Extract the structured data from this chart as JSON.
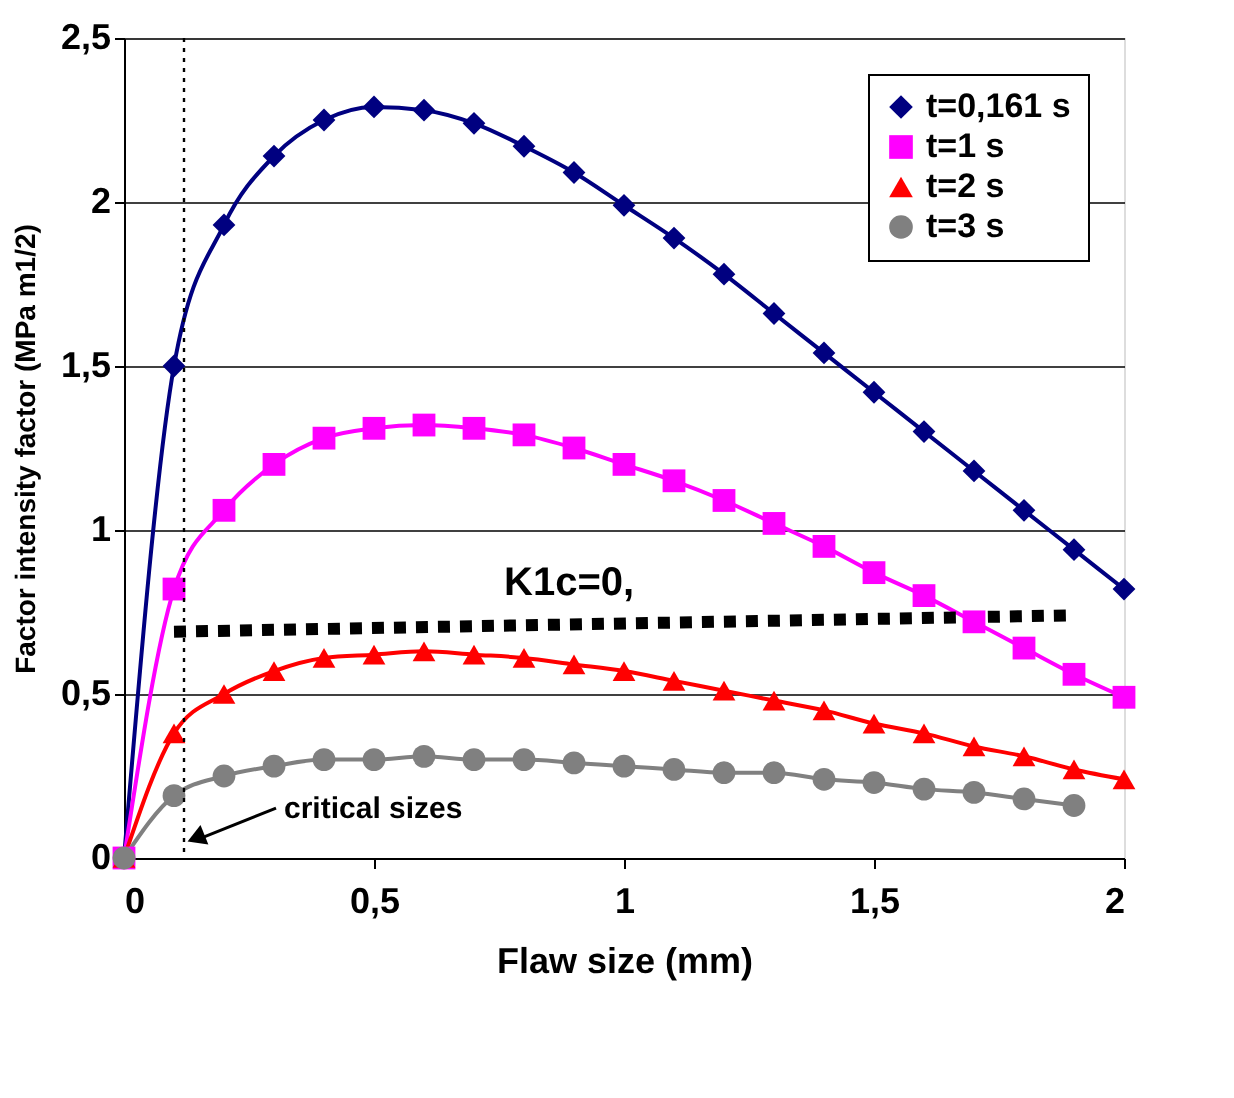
{
  "chart_data": {
    "type": "line",
    "xlabel": "Flaw size (mm)",
    "ylabel": "Factor intensity factor (MPa m1/2)",
    "x": [
      0,
      0.1,
      0.2,
      0.3,
      0.4,
      0.5,
      0.6,
      0.7,
      0.8,
      0.9,
      1.0,
      1.1,
      1.2,
      1.3,
      1.4,
      1.5,
      1.6,
      1.7,
      1.8,
      1.9,
      2.0
    ],
    "series": [
      {
        "name": "t=0,161 s",
        "color": "#000080",
        "marker": "diamond",
        "values": [
          0,
          1.5,
          1.93,
          2.14,
          2.25,
          2.29,
          2.28,
          2.24,
          2.17,
          2.09,
          1.99,
          1.89,
          1.78,
          1.66,
          1.54,
          1.42,
          1.3,
          1.18,
          1.06,
          0.94,
          0.82
        ]
      },
      {
        "name": "t=1 s",
        "color": "#ff00ff",
        "marker": "square",
        "values": [
          0,
          0.82,
          1.06,
          1.2,
          1.28,
          1.31,
          1.32,
          1.31,
          1.29,
          1.25,
          1.2,
          1.15,
          1.09,
          1.02,
          0.95,
          0.87,
          0.8,
          0.72,
          0.64,
          0.56,
          0.49
        ]
      },
      {
        "name": "t=2 s",
        "color": "#ff0000",
        "marker": "triangle",
        "values": [
          0,
          0.38,
          0.5,
          0.57,
          0.61,
          0.62,
          0.63,
          0.62,
          0.61,
          0.59,
          0.57,
          0.54,
          0.51,
          0.48,
          0.45,
          0.41,
          0.38,
          0.34,
          0.31,
          0.27,
          0.24
        ]
      },
      {
        "name": "t=3 s",
        "color": "#808080",
        "marker": "circle",
        "values": [
          0,
          0.19,
          0.25,
          0.28,
          0.3,
          0.3,
          0.31,
          0.3,
          0.3,
          0.29,
          0.28,
          0.27,
          0.26,
          0.26,
          0.24,
          0.23,
          0.21,
          0.2,
          0.18,
          0.16,
          null
        ]
      },
      {
        "color": "#000000",
        "line_style": "dotted",
        "marker": "none",
        "x": [
          0.1,
          1.9
        ],
        "values": [
          0.69,
          0.74
        ]
      }
    ],
    "xlim": [
      0,
      2
    ],
    "xticks": [
      0,
      {
        "value": 0.5,
        "label": "0,5"
      },
      1,
      {
        "value": 1.5,
        "label": "1,5"
      },
      2
    ],
    "ylim": [
      0,
      2.5
    ],
    "yticks": [
      0,
      {
        "value": 0.5,
        "label": "0,5"
      },
      1,
      {
        "value": 1.5,
        "label": "1,5"
      },
      2,
      {
        "value": 2.5,
        "label": "2,5"
      }
    ],
    "grid": "y",
    "legend": "top right",
    "ref_lines": [
      {
        "axis": "x",
        "value": 0.12,
        "line_style": "dotted",
        "color": "#000000"
      }
    ],
    "annotations": [
      "K1c=0,",
      {
        "text": "critical sizes",
        "x": 0.12,
        "y": 0.03
      }
    ]
  }
}
